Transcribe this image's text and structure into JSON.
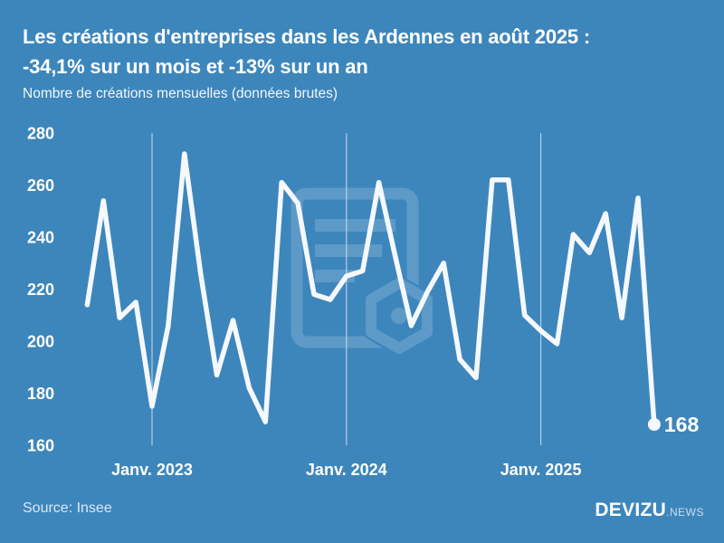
{
  "header": {
    "title_line1": "Les créations d'entreprises dans les Ardennes en août 2025 :",
    "title_line2": "-34,1% sur un mois et -13% sur un an",
    "subtitle": "Nombre de créations mensuelles (données brutes)"
  },
  "chart_data": {
    "type": "line",
    "title": "Les créations d'entreprises dans les Ardennes en août 2025 : -34,1% sur un mois et -13% sur un an",
    "subtitle": "Nombre de créations mensuelles (données brutes)",
    "x": [
      "2022-09",
      "2022-10",
      "2022-11",
      "2022-12",
      "2023-01",
      "2023-02",
      "2023-03",
      "2023-04",
      "2023-05",
      "2023-06",
      "2023-07",
      "2023-08",
      "2023-09",
      "2023-10",
      "2023-11",
      "2023-12",
      "2024-01",
      "2024-02",
      "2024-03",
      "2024-04",
      "2024-05",
      "2024-06",
      "2024-07",
      "2024-08",
      "2024-09",
      "2024-10",
      "2024-11",
      "2024-12",
      "2025-01",
      "2025-02",
      "2025-03",
      "2025-04",
      "2025-05",
      "2025-06",
      "2025-07",
      "2025-08"
    ],
    "values": [
      214,
      254,
      209,
      215,
      175,
      206,
      272,
      226,
      187,
      208,
      182,
      169,
      261,
      253,
      218,
      216,
      225,
      227,
      261,
      233,
      206,
      219,
      230,
      193,
      186,
      262,
      262,
      210,
      204,
      199,
      241,
      234,
      249,
      209,
      255,
      168
    ],
    "ylim": [
      160,
      280
    ],
    "y_ticks": [
      280,
      260,
      240,
      220,
      200,
      180,
      160
    ],
    "x_tick_labels": [
      {
        "label": "Janv. 2023",
        "index": 4
      },
      {
        "label": "Janv. 2024",
        "index": 16
      },
      {
        "label": "Janv. 2025",
        "index": 28
      }
    ],
    "grid": "vertical-at-january-only",
    "legend": "none",
    "end_label": "168",
    "last_point_value": 168
  },
  "footer": {
    "source": "Source: Insee",
    "brand": "DEVIZU",
    "brand_suffix": ".NEWS"
  },
  "colors": {
    "background": "#3d86bc",
    "line": "#f5f8fc",
    "text": "#ffffff",
    "grid": "rgba(255,255,255,0.6)",
    "watermark": "rgba(255,255,255,0.17)",
    "muted_text": "rgba(255,255,255,0.8)"
  }
}
